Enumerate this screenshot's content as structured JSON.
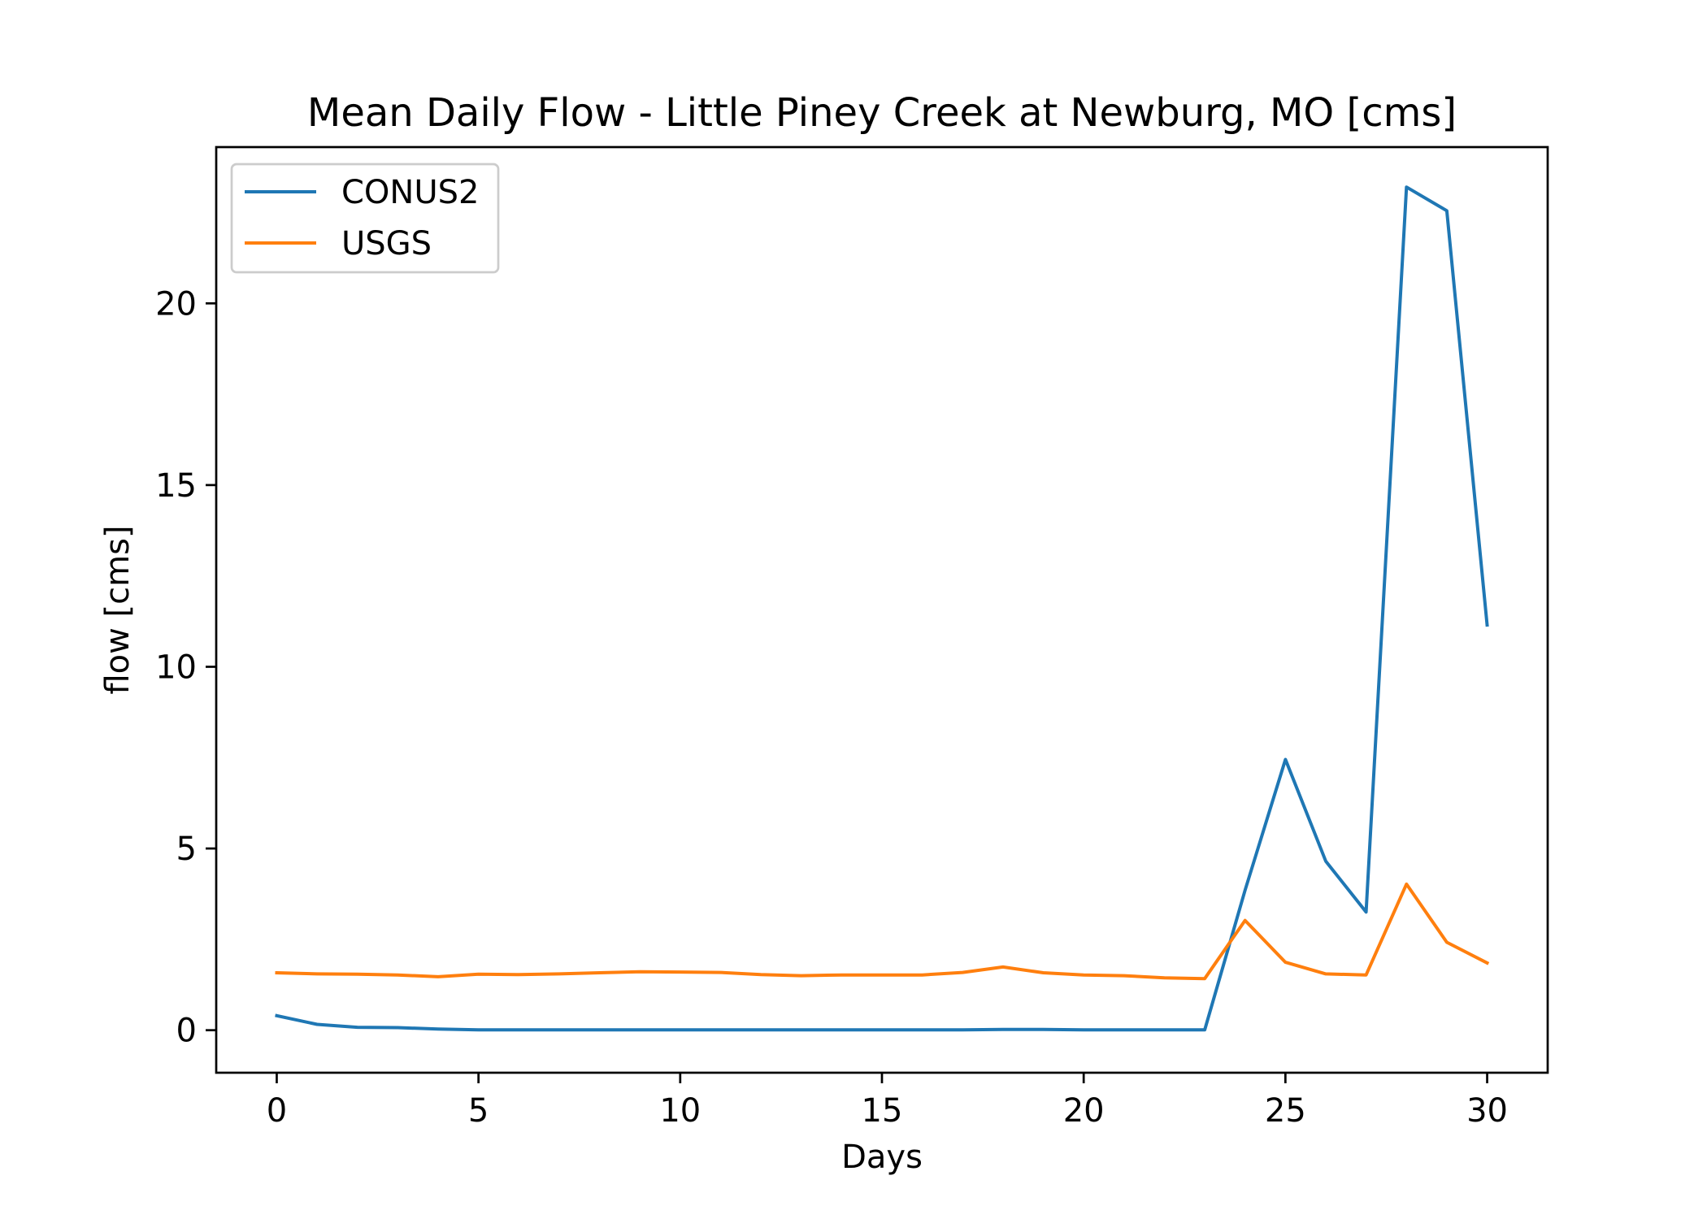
{
  "chart_data": {
    "type": "line",
    "title": "Mean Daily Flow - Little Piney Creek at Newburg, MO [cms]",
    "xlabel": "Days",
    "ylabel": "flow [cms]",
    "xlim": [
      -1.5,
      31.5
    ],
    "ylim": [
      -1.17,
      24.3
    ],
    "xticks": [
      0,
      5,
      10,
      15,
      20,
      25,
      30
    ],
    "yticks": [
      0,
      5,
      10,
      15,
      20
    ],
    "grid": false,
    "legend": "upper left",
    "x": [
      0,
      1,
      2,
      3,
      4,
      5,
      6,
      7,
      8,
      9,
      10,
      11,
      12,
      13,
      14,
      15,
      16,
      17,
      18,
      19,
      20,
      21,
      22,
      23,
      24,
      25,
      26,
      27,
      28,
      29,
      30
    ],
    "series": [
      {
        "name": "CONUS2",
        "color": "#1f77b4",
        "values": [
          0.4,
          0.16,
          0.08,
          0.07,
          0.03,
          0.01,
          0.01,
          0.01,
          0.01,
          0.01,
          0.01,
          0.01,
          0.01,
          0.01,
          0.01,
          0.01,
          0.01,
          0.01,
          0.02,
          0.02,
          0.01,
          0.01,
          0.01,
          0.01,
          3.85,
          7.45,
          4.65,
          3.25,
          23.2,
          22.55,
          11.15
        ]
      },
      {
        "name": "USGS",
        "color": "#ff7f0e",
        "values": [
          1.58,
          1.55,
          1.54,
          1.52,
          1.47,
          1.54,
          1.53,
          1.55,
          1.58,
          1.61,
          1.6,
          1.59,
          1.53,
          1.5,
          1.52,
          1.52,
          1.52,
          1.59,
          1.74,
          1.58,
          1.52,
          1.5,
          1.44,
          1.42,
          3.02,
          1.87,
          1.55,
          1.52,
          4.02,
          2.42,
          1.85
        ]
      }
    ]
  }
}
